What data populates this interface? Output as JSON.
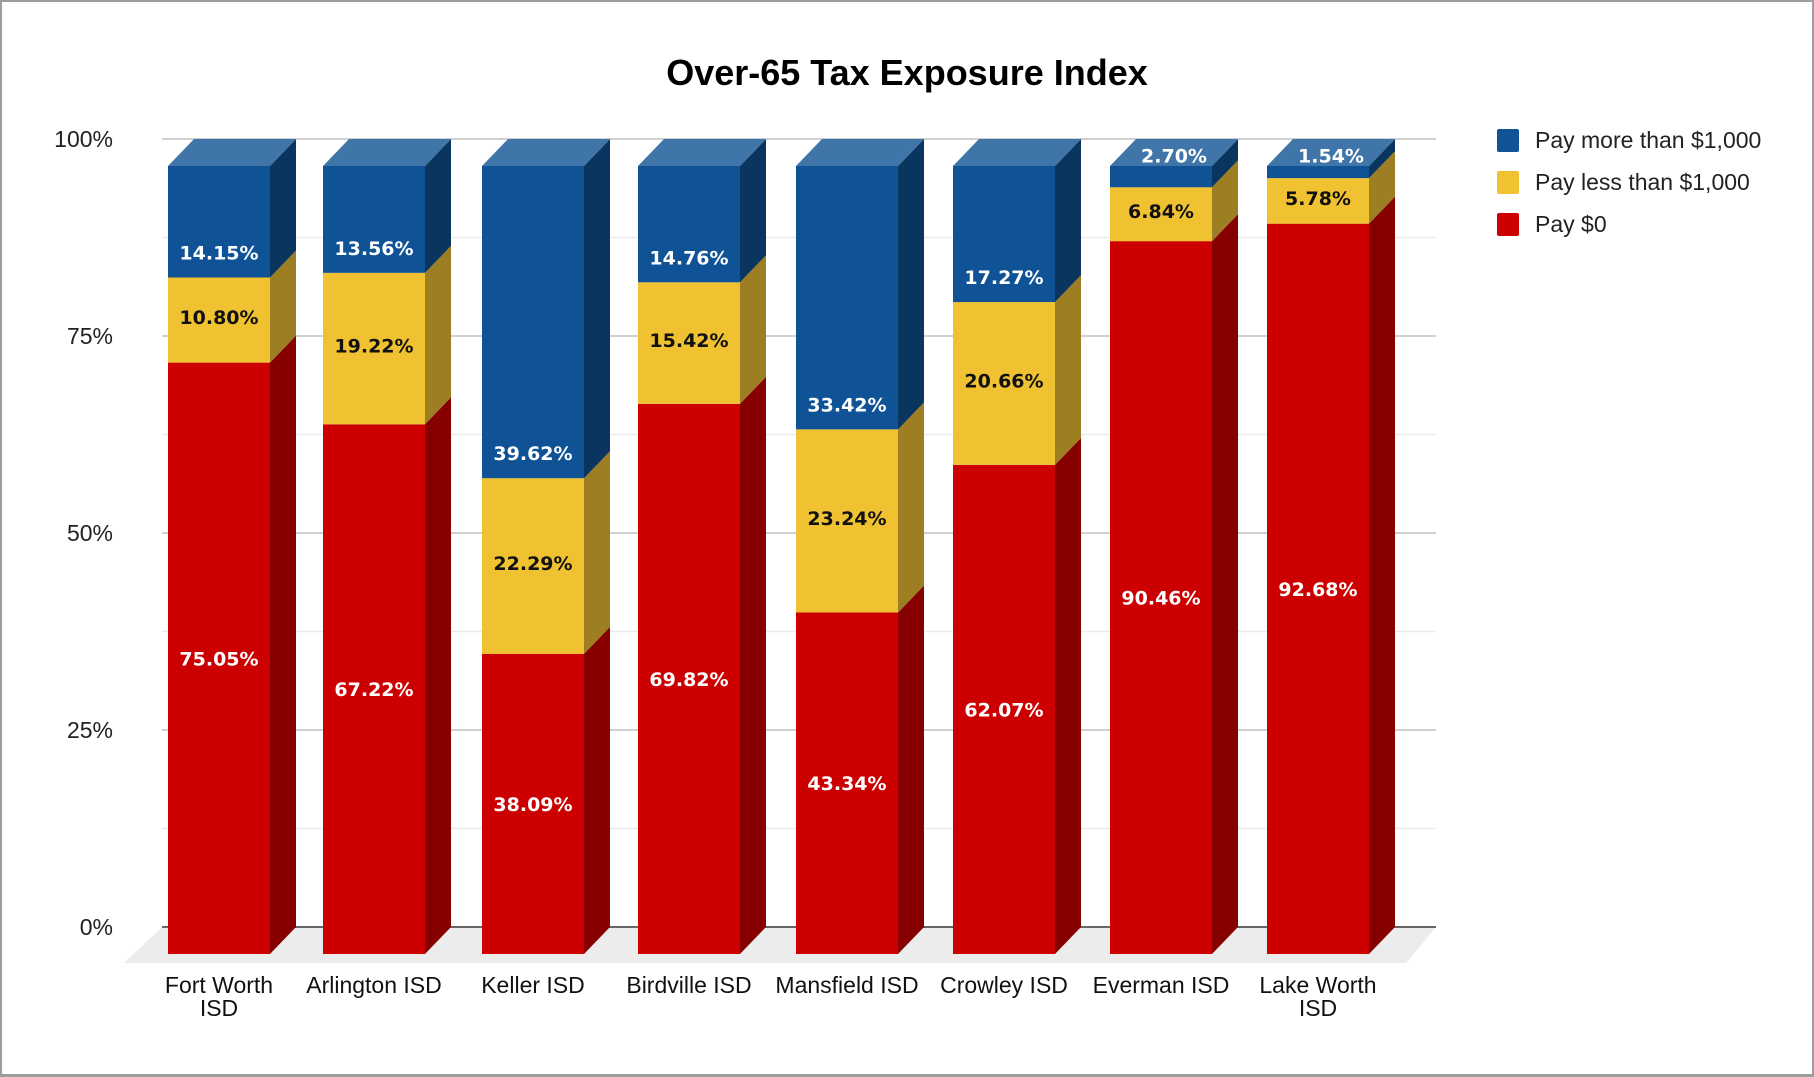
{
  "chart_data": {
    "type": "bar",
    "subtype": "stacked-100-3d",
    "title": "Over-65 Tax Exposure Index",
    "xlabel": "",
    "ylabel": "",
    "ylim": [
      0,
      100
    ],
    "y_ticks": [
      "0%",
      "25%",
      "50%",
      "75%",
      "100%"
    ],
    "grid": true,
    "legend_position": "right",
    "categories": [
      {
        "label": "Fort Worth ISD",
        "lines": [
          "Fort Worth",
          "ISD"
        ]
      },
      {
        "label": "Arlington ISD",
        "lines": [
          "Arlington ISD"
        ]
      },
      {
        "label": "Keller ISD",
        "lines": [
          "Keller ISD"
        ]
      },
      {
        "label": "Birdville ISD",
        "lines": [
          "Birdville ISD"
        ]
      },
      {
        "label": "Mansfield ISD",
        "lines": [
          "Mansfield ISD"
        ]
      },
      {
        "label": "Crowley ISD",
        "lines": [
          "Crowley ISD"
        ]
      },
      {
        "label": "Everman ISD",
        "lines": [
          "Everman ISD"
        ]
      },
      {
        "label": "Lake Worth ISD",
        "lines": [
          "Lake Worth",
          "ISD"
        ]
      }
    ],
    "series": [
      {
        "name": "Pay $0",
        "color": "#cc0000",
        "side_color": "#870000",
        "top_color": "#e04040",
        "label_color": "#ffffff",
        "values": [
          75.05,
          67.22,
          38.09,
          69.82,
          43.34,
          62.07,
          90.46,
          92.68
        ],
        "labels": [
          "75.05%",
          "67.22%",
          "38.09%",
          "69.82%",
          "43.34%",
          "62.07%",
          "90.46%",
          "92.68%"
        ]
      },
      {
        "name": "Pay less than $1,000",
        "color": "#f0c232",
        "side_color": "#9e7e22",
        "top_color": "#f5d46a",
        "label_color": "#111111",
        "values": [
          10.8,
          19.22,
          22.29,
          15.42,
          23.24,
          20.66,
          6.84,
          5.78
        ],
        "labels": [
          "10.80%",
          "19.22%",
          "22.29%",
          "15.42%",
          "23.24%",
          "20.66%",
          "6.84%",
          "5.78%"
        ]
      },
      {
        "name": "Pay more than $1,000",
        "color": "#0f5295",
        "side_color": "#0a355f",
        "top_color": "#3f75a8",
        "label_color": "#ffffff",
        "values": [
          14.15,
          13.56,
          39.62,
          14.76,
          33.42,
          17.27,
          2.7,
          1.54
        ],
        "labels": [
          "14.15%",
          "13.56%",
          "39.62%",
          "14.76%",
          "33.42%",
          "17.27%",
          "2.70%",
          "1.54%"
        ]
      }
    ],
    "legend": [
      {
        "name": "Pay more than $1,000",
        "color": "#0f5295"
      },
      {
        "name": "Pay less than $1,000",
        "color": "#f0c232"
      },
      {
        "name": "Pay $0",
        "color": "#cc0000"
      }
    ]
  }
}
